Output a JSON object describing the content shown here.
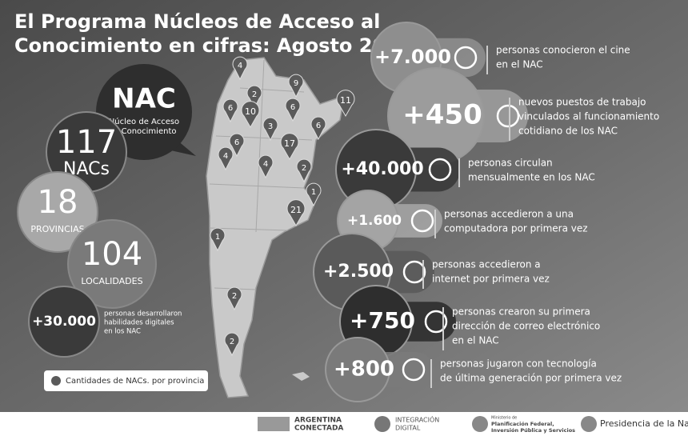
{
  "title_lines": [
    "El Programa Núcleos de Acceso al",
    "Conocimiento en cifras: Agosto 2013"
  ],
  "logo": {
    "name": "NAC",
    "lines": [
      "Núcleo de Acceso",
      "al Conocimiento"
    ]
  },
  "left_stats": [
    {
      "value": "117",
      "label": "NACs"
    },
    {
      "value": "18",
      "label": "PROVINCIAS"
    },
    {
      "value": "104",
      "label": "LOCALIDADES"
    },
    {
      "value": "+30.000",
      "lines": [
        "personas desarrollaron",
        "habilidades digitales",
        "en los NAC"
      ]
    }
  ],
  "map_markers": [
    "4",
    "2",
    "9",
    "6",
    "10",
    "6",
    "3",
    "11",
    "6",
    "6",
    "17",
    "4",
    "4",
    "2",
    "1",
    "21",
    "1",
    "2",
    "2"
  ],
  "legend": "Cantidades de NACs. por provincia",
  "right_stats": [
    {
      "value": "+7.000",
      "lines": [
        "personas conocieron el cine",
        "en el NAC"
      ]
    },
    {
      "value": "+450",
      "lines": [
        "nuevos puestos de trabajo",
        "vinculados al funcionamiento",
        "cotidiano de los NAC"
      ]
    },
    {
      "value": "+40.000",
      "lines": [
        "personas circulan",
        "mensualmente en los NAC"
      ]
    },
    {
      "value": "+1.600",
      "lines": [
        "personas accedieron a una",
        "computadora por primera vez"
      ]
    },
    {
      "value": "+2.500",
      "lines": [
        "personas accedieron a",
        "internet por primera vez"
      ]
    },
    {
      "value": "+750",
      "lines": [
        "personas crearon su primera",
        "dirección de correo electrónico",
        "en el NAC"
      ]
    },
    {
      "value": "+800",
      "lines": [
        "personas jugaron con tecnología",
        "de última generación por primera vez"
      ]
    }
  ],
  "footer": {
    "argentina": [
      "ARGENTINA",
      "CONECTADA"
    ],
    "integracion": [
      "INTEGRACIÓN",
      "DIGITAL"
    ],
    "ministerio": [
      "Ministerio de",
      "Planificación Federal,",
      "Inversión Pública y Servicios"
    ],
    "presidencia": "Presidencia de la Nación"
  }
}
